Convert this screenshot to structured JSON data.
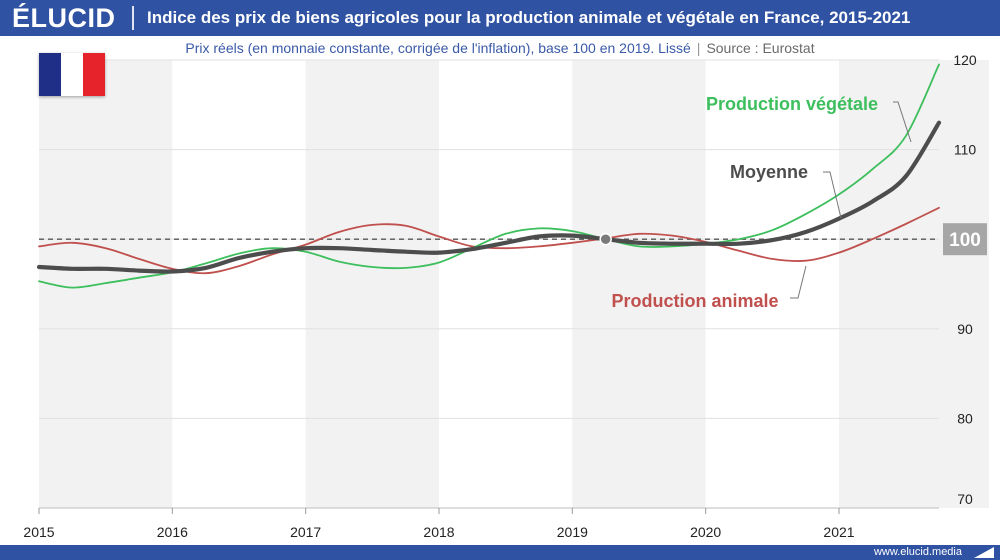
{
  "header": {
    "logo": "ÉLUCID",
    "title": "Indice des prix de biens agricoles pour la production animale et végétale en France, 2015-2021"
  },
  "subtitle": {
    "text": "Prix réels (en monnaie constante, corrigée de l'inflation), base 100 en 2019. Lissé",
    "separator": "|",
    "source": "Source : Eurostat"
  },
  "footer": {
    "site": "www.elucid.media"
  },
  "flag_icon": "france-flag-icon",
  "colors": {
    "brand": "#2f52a3",
    "vegetale": "#3cbf5c",
    "animale": "#c0504d",
    "moyenne": "#4d4d4d",
    "reference": "#555555",
    "badge": "#a6a6a6"
  },
  "chart_data": {
    "type": "line",
    "title": "Indice des prix de biens agricoles pour la production animale et végétale en France, 2015-2021",
    "subtitle": "Prix réels (en monnaie constante, corrigée de l'inflation), base 100 en 2019. Lissé",
    "xlabel": "",
    "ylabel": "",
    "xlim": [
      2015.0,
      2021.75
    ],
    "ylim": [
      70,
      120
    ],
    "x_ticks": [
      "2015",
      "2016",
      "2017",
      "2018",
      "2019",
      "2020",
      "2021"
    ],
    "y_ticks": [
      "70",
      "80",
      "90",
      "100",
      "110",
      "120"
    ],
    "reference_line": {
      "value": 100,
      "label": "100",
      "style": "dashed"
    },
    "marker": {
      "x": 2019.25,
      "y": 100
    },
    "grid": "alternating vertical year bands, light horizontal gridlines",
    "series": [
      {
        "name": "Production végétale",
        "x": [
          2015.0,
          2015.25,
          2015.5,
          2015.75,
          2016.0,
          2016.25,
          2016.5,
          2016.75,
          2017.0,
          2017.25,
          2017.5,
          2017.75,
          2018.0,
          2018.25,
          2018.5,
          2018.75,
          2019.0,
          2019.25,
          2019.5,
          2019.75,
          2020.0,
          2020.25,
          2020.5,
          2020.75,
          2021.0,
          2021.25,
          2021.5,
          2021.75
        ],
        "values": [
          95.3,
          94.6,
          95.1,
          95.7,
          96.3,
          97.3,
          98.4,
          99.0,
          98.6,
          97.5,
          96.9,
          96.8,
          97.4,
          99.0,
          100.6,
          101.2,
          100.9,
          100.0,
          99.2,
          99.2,
          99.5,
          100.0,
          101.0,
          102.8,
          105.0,
          107.8,
          111.5,
          119.5
        ]
      },
      {
        "name": "Moyenne",
        "x": [
          2015.0,
          2015.25,
          2015.5,
          2015.75,
          2016.0,
          2016.25,
          2016.5,
          2016.75,
          2017.0,
          2017.25,
          2017.5,
          2017.75,
          2018.0,
          2018.25,
          2018.5,
          2018.75,
          2019.0,
          2019.25,
          2019.5,
          2019.75,
          2020.0,
          2020.25,
          2020.5,
          2020.75,
          2021.0,
          2021.25,
          2021.5,
          2021.75
        ],
        "values": [
          96.9,
          96.7,
          96.7,
          96.5,
          96.4,
          96.8,
          97.9,
          98.6,
          99.0,
          99.0,
          98.8,
          98.6,
          98.5,
          98.9,
          99.6,
          100.3,
          100.4,
          100.0,
          99.6,
          99.5,
          99.5,
          99.5,
          99.9,
          100.8,
          102.3,
          104.2,
          107.0,
          113.0
        ]
      },
      {
        "name": "Production animale",
        "x": [
          2015.0,
          2015.25,
          2015.5,
          2015.75,
          2016.0,
          2016.25,
          2016.5,
          2016.75,
          2017.0,
          2017.25,
          2017.5,
          2017.75,
          2018.0,
          2018.25,
          2018.5,
          2018.75,
          2019.0,
          2019.25,
          2019.5,
          2019.75,
          2020.0,
          2020.25,
          2020.5,
          2020.75,
          2021.0,
          2021.25,
          2021.5,
          2021.75
        ],
        "values": [
          99.2,
          99.6,
          99.0,
          97.8,
          96.7,
          96.2,
          97.0,
          98.3,
          99.4,
          100.8,
          101.6,
          101.5,
          100.3,
          99.2,
          99.0,
          99.2,
          99.6,
          100.1,
          100.6,
          100.4,
          99.7,
          98.7,
          97.8,
          97.6,
          98.5,
          100.0,
          101.7,
          103.5
        ]
      }
    ],
    "annotations": [
      {
        "text": "Production végétale",
        "series": "Production végétale"
      },
      {
        "text": "Moyenne",
        "series": "Moyenne"
      },
      {
        "text": "Production animale",
        "series": "Production animale"
      }
    ]
  }
}
